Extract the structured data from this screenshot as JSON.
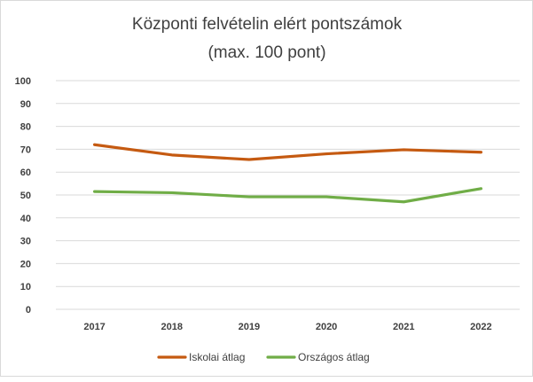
{
  "chart_data": {
    "type": "line",
    "title": "Központi felvételin  elért pontszámok",
    "subtitle": "(max. 100 pont)",
    "xlabel": "",
    "ylabel": "",
    "categories": [
      "2017",
      "2018",
      "2019",
      "2020",
      "2021",
      "2022"
    ],
    "ylim": [
      0,
      100
    ],
    "yticks": [
      0,
      10,
      20,
      30,
      40,
      50,
      60,
      70,
      80,
      90,
      100
    ],
    "grid": true,
    "legend_position": "bottom",
    "series": [
      {
        "name": "Iskolai átlag",
        "color": "#c55a11",
        "values": [
          72,
          67.5,
          65.5,
          68,
          69.8,
          68.7
        ]
      },
      {
        "name": "Országos átlag",
        "color": "#70ad47",
        "values": [
          51.5,
          51,
          49.2,
          49.2,
          47,
          52.8
        ]
      }
    ]
  }
}
